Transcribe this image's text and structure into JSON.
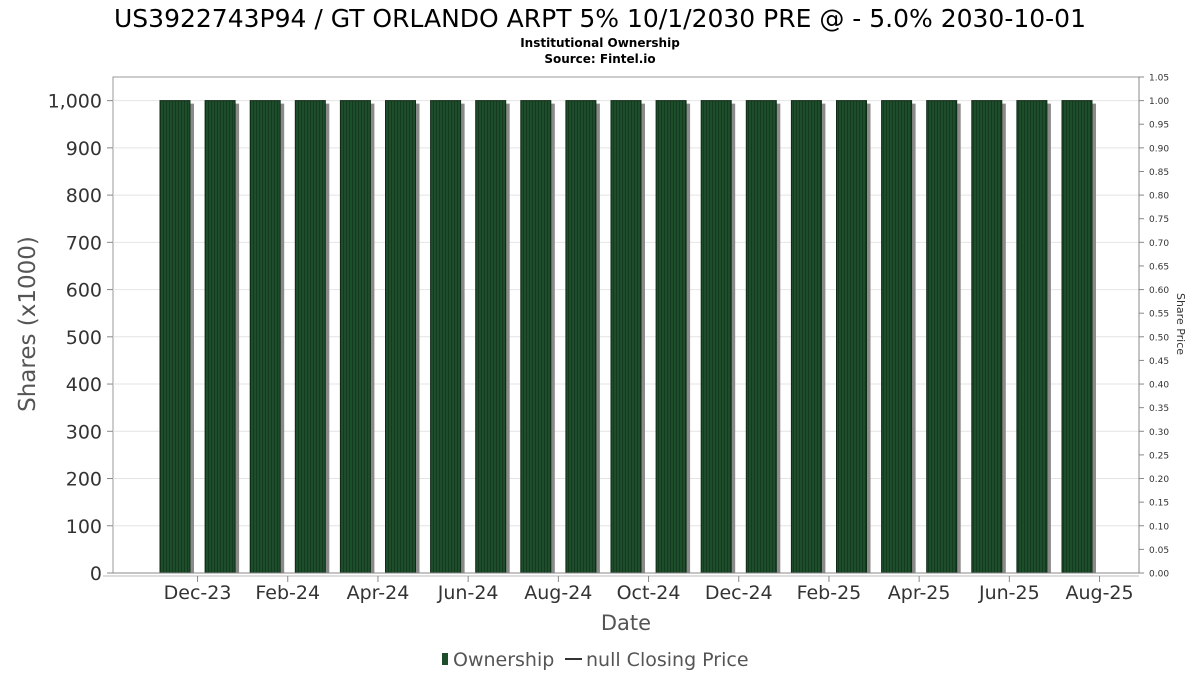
{
  "chart_data": {
    "type": "bar",
    "title": "US3922743P94 / GT ORLANDO ARPT 5% 10/1/2030 PRE @ - 5.0% 2030-10-01",
    "subtitle": "Institutional Ownership",
    "source": "Source: Fintel.io",
    "xlabel": "Date",
    "ylabel": "Shares (x1000)",
    "y2label": "Share Price",
    "ylim": [
      0,
      1050
    ],
    "y2lim": [
      0,
      1.05
    ],
    "yticks": [
      0,
      100,
      200,
      300,
      400,
      500,
      600,
      700,
      800,
      900,
      1000
    ],
    "ytick_labels": [
      "0",
      "100",
      "200",
      "300",
      "400",
      "500",
      "600",
      "700",
      "800",
      "900",
      "1,000"
    ],
    "y2ticks": [
      0.0,
      0.05,
      0.1,
      0.15,
      0.2,
      0.25,
      0.3,
      0.35,
      0.4,
      0.45,
      0.5,
      0.55,
      0.6,
      0.65,
      0.7,
      0.75,
      0.8,
      0.85,
      0.9,
      0.95,
      1.0,
      1.05
    ],
    "y2tick_labels": [
      "0.00",
      "0.05",
      "0.10",
      "0.15",
      "0.20",
      "0.25",
      "0.30",
      "0.35",
      "0.40",
      "0.45",
      "0.50",
      "0.55",
      "0.60",
      "0.65",
      "0.70",
      "0.75",
      "0.80",
      "0.85",
      "0.90",
      "0.95",
      "1.00",
      "1.05"
    ],
    "xtick_labels": [
      "Dec-23",
      "Feb-24",
      "Apr-24",
      "Jun-24",
      "Aug-24",
      "Oct-24",
      "Dec-24",
      "Feb-25",
      "Apr-25",
      "Jun-25",
      "Aug-25"
    ],
    "series": [
      {
        "name": "Ownership",
        "color": "#1e4d2b",
        "values": [
          1000,
          1000,
          1000,
          1000,
          1000,
          1000,
          1000,
          1000,
          1000,
          1000,
          1000,
          1000,
          1000,
          1000,
          1000,
          1000,
          1000,
          1000,
          1000,
          1000,
          1000
        ]
      }
    ],
    "legend": [
      {
        "label": "Ownership",
        "kind": "bar",
        "color": "#1e4d2b"
      },
      {
        "label": "null Closing Price",
        "kind": "line",
        "color": "#333333"
      }
    ],
    "legend_position": "bottom",
    "grid": true
  }
}
